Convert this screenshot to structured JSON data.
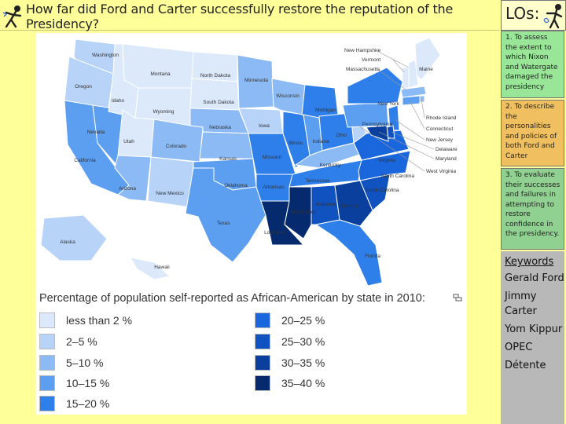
{
  "title": "How far did Ford and Carter successfully restore the reputation of the Presidency?",
  "objectives": {
    "header": "LOs:",
    "items": [
      "1. To assess the extent to which Nixon and Watergate damaged the presidency",
      "2. To describe the personalities and policies of both Ford and Carter",
      "3. To evaluate their successes and failures in attempting to restore confidence in the presidency."
    ]
  },
  "keywords": {
    "header": "Keywords",
    "items": [
      "Gerald Ford",
      "Jimmy Carter",
      "Yom Kippur",
      "OPEC",
      "Détente"
    ]
  },
  "map": {
    "legend_title": "Percentage of population self-reported as African-American by state in 2010:",
    "legend": [
      {
        "label": "less than 2 %",
        "color": "#dbe9fb"
      },
      {
        "label": "2–5 %",
        "color": "#b7d3f8"
      },
      {
        "label": "5–10 %",
        "color": "#8cbaf4"
      },
      {
        "label": "10–15 %",
        "color": "#5c9ef0"
      },
      {
        "label": "15–20 %",
        "color": "#2f7fea"
      },
      {
        "label": "20–25 %",
        "color": "#1a66dc"
      },
      {
        "label": "25–30 %",
        "color": "#0f52c0"
      },
      {
        "label": "30–35 %",
        "color": "#0a3f9e"
      },
      {
        "label": "35–40 %",
        "color": "#052a6e"
      }
    ],
    "states": [
      {
        "name": "Washington",
        "level": 1
      },
      {
        "name": "Oregon",
        "level": 1
      },
      {
        "name": "California",
        "level": 3
      },
      {
        "name": "Nevada",
        "level": 3
      },
      {
        "name": "Idaho",
        "level": 0
      },
      {
        "name": "Montana",
        "level": 0
      },
      {
        "name": "Wyoming",
        "level": 0
      },
      {
        "name": "Utah",
        "level": 0
      },
      {
        "name": "Colorado",
        "level": 2
      },
      {
        "name": "Arizona",
        "level": 2
      },
      {
        "name": "New Mexico",
        "level": 1
      },
      {
        "name": "North Dakota",
        "level": 0
      },
      {
        "name": "South Dakota",
        "level": 0
      },
      {
        "name": "Nebraska",
        "level": 2
      },
      {
        "name": "Kansas",
        "level": 2
      },
      {
        "name": "Oklahoma",
        "level": 3
      },
      {
        "name": "Texas",
        "level": 3
      },
      {
        "name": "Minnesota",
        "level": 2
      },
      {
        "name": "Iowa",
        "level": 1
      },
      {
        "name": "Missouri",
        "level": 4
      },
      {
        "name": "Arkansas",
        "level": 4
      },
      {
        "name": "Louisiana",
        "level": 8
      },
      {
        "name": "Wisconsin",
        "level": 2
      },
      {
        "name": "Illinois",
        "level": 4
      },
      {
        "name": "Michigan",
        "level": 4
      },
      {
        "name": "Indiana",
        "level": 3
      },
      {
        "name": "Ohio",
        "level": 4
      },
      {
        "name": "Kentucky",
        "level": 2
      },
      {
        "name": "Tennessee",
        "level": 4
      },
      {
        "name": "Mississippi",
        "level": 8
      },
      {
        "name": "Alabama",
        "level": 6
      },
      {
        "name": "Georgia",
        "level": 7
      },
      {
        "name": "Florida",
        "level": 4
      },
      {
        "name": "South Carolina",
        "level": 6
      },
      {
        "name": "North Carolina",
        "level": 5
      },
      {
        "name": "Virginia",
        "level": 5
      },
      {
        "name": "West Virginia",
        "level": 1
      },
      {
        "name": "Pennsylvania",
        "level": 3
      },
      {
        "name": "New York",
        "level": 4
      },
      {
        "name": "Vermont",
        "level": 0
      },
      {
        "name": "New Hampshire",
        "level": 0
      },
      {
        "name": "Maine",
        "level": 0
      },
      {
        "name": "Massachusetts",
        "level": 2
      },
      {
        "name": "Rhode Island",
        "level": 2
      },
      {
        "name": "Connecticut",
        "level": 3
      },
      {
        "name": "New Jersey",
        "level": 4
      },
      {
        "name": "Delaware",
        "level": 6
      },
      {
        "name": "Maryland",
        "level": 7
      },
      {
        "name": "Alaska",
        "level": 1
      },
      {
        "name": "Hawaii",
        "level": 0
      }
    ]
  }
}
